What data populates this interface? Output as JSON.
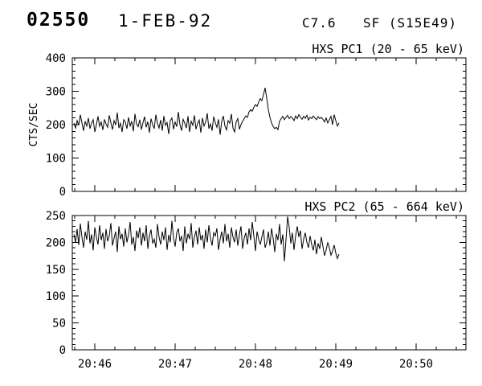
{
  "header": {
    "event_number": "02550",
    "date": "1-FEB-92",
    "goes_class": "C7.6",
    "flare_type_location": "SF (S15E49)"
  },
  "colors": {
    "line": "#000000",
    "background": "#ffffff"
  },
  "xaxis": {
    "xlim": [
      0.72,
      5.62
    ],
    "minor": 0.25,
    "ticks": [
      {
        "x": 1,
        "label": "20:46"
      },
      {
        "x": 2,
        "label": "20:47"
      },
      {
        "x": 3,
        "label": "20:48"
      },
      {
        "x": 4,
        "label": "20:49"
      },
      {
        "x": 5,
        "label": "20:50"
      }
    ]
  },
  "chart_data": [
    {
      "type": "line",
      "title": "HXS PC1 (20 - 65 keV)",
      "ylabel": "CTS/SEC",
      "ylim": [
        0,
        400
      ],
      "yticks": [
        0,
        100,
        200,
        300,
        400
      ],
      "yminor": 20,
      "x_start": 0.74,
      "x_step": 0.02,
      "values": [
        205,
        190,
        212,
        198,
        230,
        205,
        182,
        210,
        196,
        220,
        188,
        205,
        215,
        178,
        200,
        225,
        195,
        208,
        184,
        216,
        202,
        192,
        228,
        206,
        185,
        212,
        199,
        236,
        190,
        204,
        178,
        215,
        208,
        188,
        222,
        196,
        210,
        180,
        232,
        202,
        194,
        215,
        185,
        206,
        224,
        192,
        209,
        176,
        218,
        200,
        188,
        230,
        204,
        190,
        214,
        182,
        226,
        198,
        206,
        172,
        212,
        220,
        186,
        208,
        194,
        238,
        200,
        182,
        216,
        204,
        190,
        225,
        178,
        210,
        198,
        228,
        186,
        204,
        214,
        176,
        220,
        196,
        208,
        234,
        188,
        202,
        182,
        224,
        206,
        192,
        216,
        170,
        210,
        226,
        196,
        184,
        212,
        204,
        232,
        190,
        178,
        208,
        218,
        186,
        200,
        210,
        218,
        226,
        222,
        238,
        245,
        240,
        252,
        260,
        255,
        268,
        278,
        272,
        290,
        310,
        280,
        245,
        222,
        205,
        195,
        188,
        192,
        185,
        210,
        218,
        225,
        215,
        222,
        228,
        218,
        224,
        220,
        212,
        226,
        218,
        230,
        222,
        216,
        225,
        219,
        228,
        214,
        222,
        218,
        226,
        220,
        215,
        224,
        218,
        222,
        216,
        208,
        220,
        205,
        215,
        225,
        200,
        230,
        212,
        196,
        205
      ]
    },
    {
      "type": "line",
      "title": "HXS PC2 (65 - 664 keV)",
      "ylabel": "",
      "ylim": [
        0,
        250
      ],
      "yticks": [
        0,
        50,
        100,
        150,
        200,
        250
      ],
      "yminor": 10,
      "x_start": 0.74,
      "x_step": 0.02,
      "values": [
        215,
        200,
        225,
        195,
        235,
        210,
        190,
        220,
        205,
        240,
        198,
        215,
        185,
        228,
        210,
        196,
        232,
        204,
        218,
        188,
        225,
        202,
        212,
        236,
        194,
        208,
        220,
        182,
        230,
        206,
        216,
        192,
        226,
        200,
        214,
        238,
        196,
        210,
        184,
        222,
        208,
        228,
        194,
        218,
        202,
        232,
        188,
        212,
        224,
        198,
        206,
        190,
        234,
        210,
        196,
        220,
        204,
        228,
        186,
        214,
        200,
        240,
        208,
        192,
        218,
        226,
        202,
        212,
        184,
        230,
        198,
        216,
        206,
        236,
        190,
        210,
        222,
        196,
        228,
        204,
        214,
        188,
        224,
        200,
        232,
        208,
        194,
        218,
        212,
        226,
        186,
        206,
        220,
        198,
        234,
        202,
        216,
        190,
        228,
        210,
        200,
        224,
        194,
        214,
        230,
        188,
        208,
        218,
        196,
        226,
        204,
        238,
        212,
        184,
        220,
        206,
        196,
        210,
        224,
        190,
        200,
        220,
        194,
        226,
        208,
        182,
        216,
        204,
        234,
        196,
        215,
        165,
        205,
        248,
        228,
        198,
        218,
        186,
        212,
        230,
        210,
        222,
        188,
        206,
        218,
        200,
        190,
        212,
        196,
        185,
        205,
        178,
        198,
        188,
        210,
        192,
        175,
        186,
        200,
        190,
        176,
        184,
        195,
        180,
        170,
        178
      ]
    }
  ]
}
